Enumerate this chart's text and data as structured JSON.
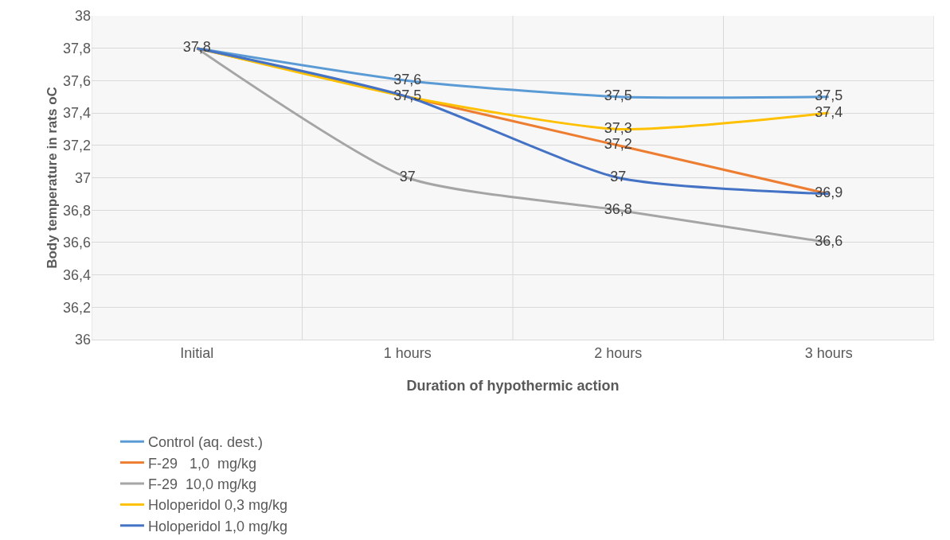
{
  "chart_data": {
    "type": "line",
    "xlabel": "Duration of hypothermic action",
    "ylabel": "Body temperature in rats oC",
    "categories": [
      "Initial",
      "1 hours",
      "2 hours",
      "3 hours"
    ],
    "series": [
      {
        "name": "Control (aq. dest.)",
        "color": "#5b9bd5",
        "values": [
          37.8,
          37.6,
          37.5,
          37.5
        ],
        "value_labels": [
          null,
          "37,6",
          "37,5",
          "37,5"
        ]
      },
      {
        "name": "F-29   1,0  mg/kg",
        "color": "#ed7d31",
        "values": [
          37.8,
          37.5,
          37.2,
          36.9
        ],
        "value_labels": [
          null,
          null,
          "37,2",
          null
        ]
      },
      {
        "name": "F-29  10,0 mg/kg",
        "color": "#a5a5a5",
        "values": [
          37.8,
          37.0,
          36.8,
          36.6
        ],
        "value_labels": [
          null,
          "37",
          "36,8",
          "36,6"
        ]
      },
      {
        "name": "Holoperidol 0,3 mg/kg",
        "color": "#ffc000",
        "values": [
          37.8,
          37.5,
          37.3,
          37.4
        ],
        "value_labels": [
          null,
          null,
          "37,3",
          "37,4"
        ]
      },
      {
        "name": "Holoperidol 1,0 mg/kg",
        "color": "#4472c4",
        "values": [
          37.8,
          37.5,
          37.0,
          36.9
        ],
        "value_labels": [
          "37,8",
          "37,5",
          "37",
          "36,9"
        ]
      }
    ],
    "ylim": [
      36,
      38
    ],
    "yticks": [
      36,
      {
        "value": 36.2,
        "label": "36,2"
      },
      {
        "value": 36.4,
        "label": "36,4"
      },
      {
        "value": 36.6,
        "label": "36,6"
      },
      {
        "value": 36.8,
        "label": "36,8"
      },
      37,
      {
        "value": 37.2,
        "label": "37,2"
      },
      {
        "value": 37.4,
        "label": "37,4"
      },
      {
        "value": 37.6,
        "label": "37,6"
      },
      {
        "value": 37.8,
        "label": "37,8"
      },
      38
    ],
    "grid": true,
    "legend": "bottom",
    "marker": "none",
    "line_style": "solid"
  }
}
